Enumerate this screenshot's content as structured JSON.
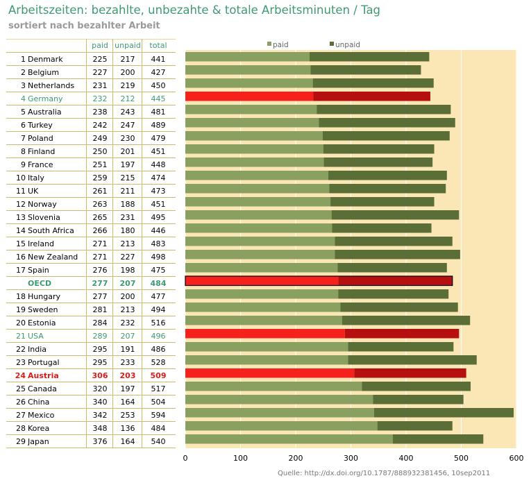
{
  "title": "Arbeitszeiten: bezahlte, unbezahte & totale Arbeitsminuten / Tag",
  "subtitle": "sortiert nach bezahlter Arbeit",
  "table": {
    "headers": {
      "paid": "paid",
      "unpaid": "unpaid",
      "total": "total"
    }
  },
  "footer": "Quelle: http://dx.doi.org/10.1787/888932381456, 10sep2011",
  "colors": {
    "paid": "#8aa061",
    "unpaid": "#5b6e38",
    "highlight_paid": "#f4211c",
    "highlight_unpaid": "#b50f0f",
    "background": "#fbe6b6",
    "header_text": "#3f9a72",
    "red_text": "#dd1b1b"
  },
  "chart_data": {
    "type": "bar",
    "orientation": "horizontal",
    "stacked": true,
    "legend": {
      "position": "top",
      "entries": [
        "paid",
        "unpaid"
      ]
    },
    "xlim": [
      0,
      600
    ],
    "xticks": [
      "0",
      "100",
      "200",
      "300",
      "400",
      "500",
      "600"
    ],
    "grid": true,
    "rows": [
      {
        "rank": "1",
        "country": "Denmark",
        "paid": 225,
        "unpaid": 217,
        "total": 441,
        "style": ""
      },
      {
        "rank": "2",
        "country": "Belgium",
        "paid": 227,
        "unpaid": 200,
        "total": 427,
        "style": ""
      },
      {
        "rank": "3",
        "country": "Netherlands",
        "paid": 231,
        "unpaid": 219,
        "total": 450,
        "style": ""
      },
      {
        "rank": "4",
        "country": "Germany",
        "paid": 232,
        "unpaid": 212,
        "total": 445,
        "style": "green"
      },
      {
        "rank": "5",
        "country": "Australia",
        "paid": 238,
        "unpaid": 243,
        "total": 481,
        "style": ""
      },
      {
        "rank": "6",
        "country": "Turkey",
        "paid": 242,
        "unpaid": 247,
        "total": 489,
        "style": ""
      },
      {
        "rank": "7",
        "country": "Poland",
        "paid": 249,
        "unpaid": 230,
        "total": 479,
        "style": ""
      },
      {
        "rank": "8",
        "country": "Finland",
        "paid": 250,
        "unpaid": 201,
        "total": 451,
        "style": ""
      },
      {
        "rank": "9",
        "country": "France",
        "paid": 251,
        "unpaid": 197,
        "total": 448,
        "style": ""
      },
      {
        "rank": "10",
        "country": "Italy",
        "paid": 259,
        "unpaid": 215,
        "total": 474,
        "style": ""
      },
      {
        "rank": "11",
        "country": "UK",
        "paid": 261,
        "unpaid": 211,
        "total": 473,
        "style": ""
      },
      {
        "rank": "12",
        "country": "Norway",
        "paid": 263,
        "unpaid": 188,
        "total": 451,
        "style": ""
      },
      {
        "rank": "13",
        "country": "Slovenia",
        "paid": 265,
        "unpaid": 231,
        "total": 495,
        "style": ""
      },
      {
        "rank": "14",
        "country": "South Africa",
        "paid": 266,
        "unpaid": 180,
        "total": 446,
        "style": ""
      },
      {
        "rank": "15",
        "country": "Ireland",
        "paid": 271,
        "unpaid": 213,
        "total": 483,
        "style": ""
      },
      {
        "rank": "16",
        "country": "New Zealand",
        "paid": 271,
        "unpaid": 227,
        "total": 498,
        "style": ""
      },
      {
        "rank": "17",
        "country": "Spain",
        "paid": 276,
        "unpaid": 198,
        "total": 475,
        "style": ""
      },
      {
        "rank": "",
        "country": "OECD",
        "paid": 277,
        "unpaid": 207,
        "total": 484,
        "style": "oecd"
      },
      {
        "rank": "18",
        "country": "Hungary",
        "paid": 277,
        "unpaid": 200,
        "total": 477,
        "style": ""
      },
      {
        "rank": "19",
        "country": "Sweden",
        "paid": 281,
        "unpaid": 213,
        "total": 494,
        "style": ""
      },
      {
        "rank": "20",
        "country": "Estonia",
        "paid": 284,
        "unpaid": 232,
        "total": 516,
        "style": ""
      },
      {
        "rank": "21",
        "country": "USA",
        "paid": 289,
        "unpaid": 207,
        "total": 496,
        "style": "green"
      },
      {
        "rank": "22",
        "country": "India",
        "paid": 295,
        "unpaid": 191,
        "total": 486,
        "style": ""
      },
      {
        "rank": "23",
        "country": "Portugal",
        "paid": 295,
        "unpaid": 233,
        "total": 528,
        "style": ""
      },
      {
        "rank": "24",
        "country": "Austria",
        "paid": 306,
        "unpaid": 203,
        "total": 509,
        "style": "red"
      },
      {
        "rank": "25",
        "country": "Canada",
        "paid": 320,
        "unpaid": 197,
        "total": 517,
        "style": ""
      },
      {
        "rank": "26",
        "country": "China",
        "paid": 340,
        "unpaid": 164,
        "total": 504,
        "style": ""
      },
      {
        "rank": "27",
        "country": "Mexico",
        "paid": 342,
        "unpaid": 253,
        "total": 594,
        "style": ""
      },
      {
        "rank": "28",
        "country": "Korea",
        "paid": 348,
        "unpaid": 136,
        "total": 484,
        "style": ""
      },
      {
        "rank": "29",
        "country": "Japan",
        "paid": 376,
        "unpaid": 164,
        "total": 540,
        "style": ""
      }
    ]
  }
}
